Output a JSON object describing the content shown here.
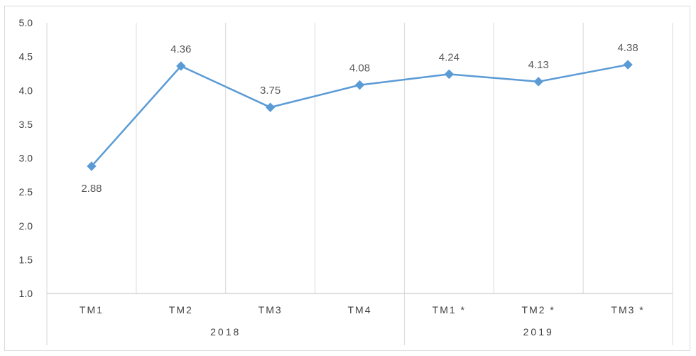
{
  "chart_data": {
    "type": "line",
    "title": "",
    "xlabel": "",
    "ylabel": "",
    "categories": [
      "TM1",
      "TM2",
      "TM3",
      "TM4",
      "TM1*",
      "TM2*",
      "TM3*"
    ],
    "category_labels": [
      "TM1",
      "TM2",
      "TM3",
      "TM4",
      "TM1 *",
      "TM2 *",
      "TM3 *"
    ],
    "groups": [
      {
        "label": "2018",
        "start": 0,
        "end": 3
      },
      {
        "label": "2019",
        "start": 4,
        "end": 6
      }
    ],
    "series": [
      {
        "values": [
          2.88,
          4.36,
          3.75,
          4.08,
          4.24,
          4.13,
          4.38
        ],
        "color": "#5b9bd5"
      }
    ],
    "data_labels": [
      "2.88",
      "4.36",
      "3.75",
      "4.08",
      "4.24",
      "4.13",
      "4.38"
    ],
    "ylim": [
      1.0,
      5.0
    ],
    "yticks": [
      "1.0",
      "1.5",
      "2.0",
      "2.5",
      "3.0",
      "3.5",
      "4.0",
      "4.5",
      "5.0"
    ],
    "grid": "vertical",
    "legend": "none",
    "marker": "diamond"
  }
}
